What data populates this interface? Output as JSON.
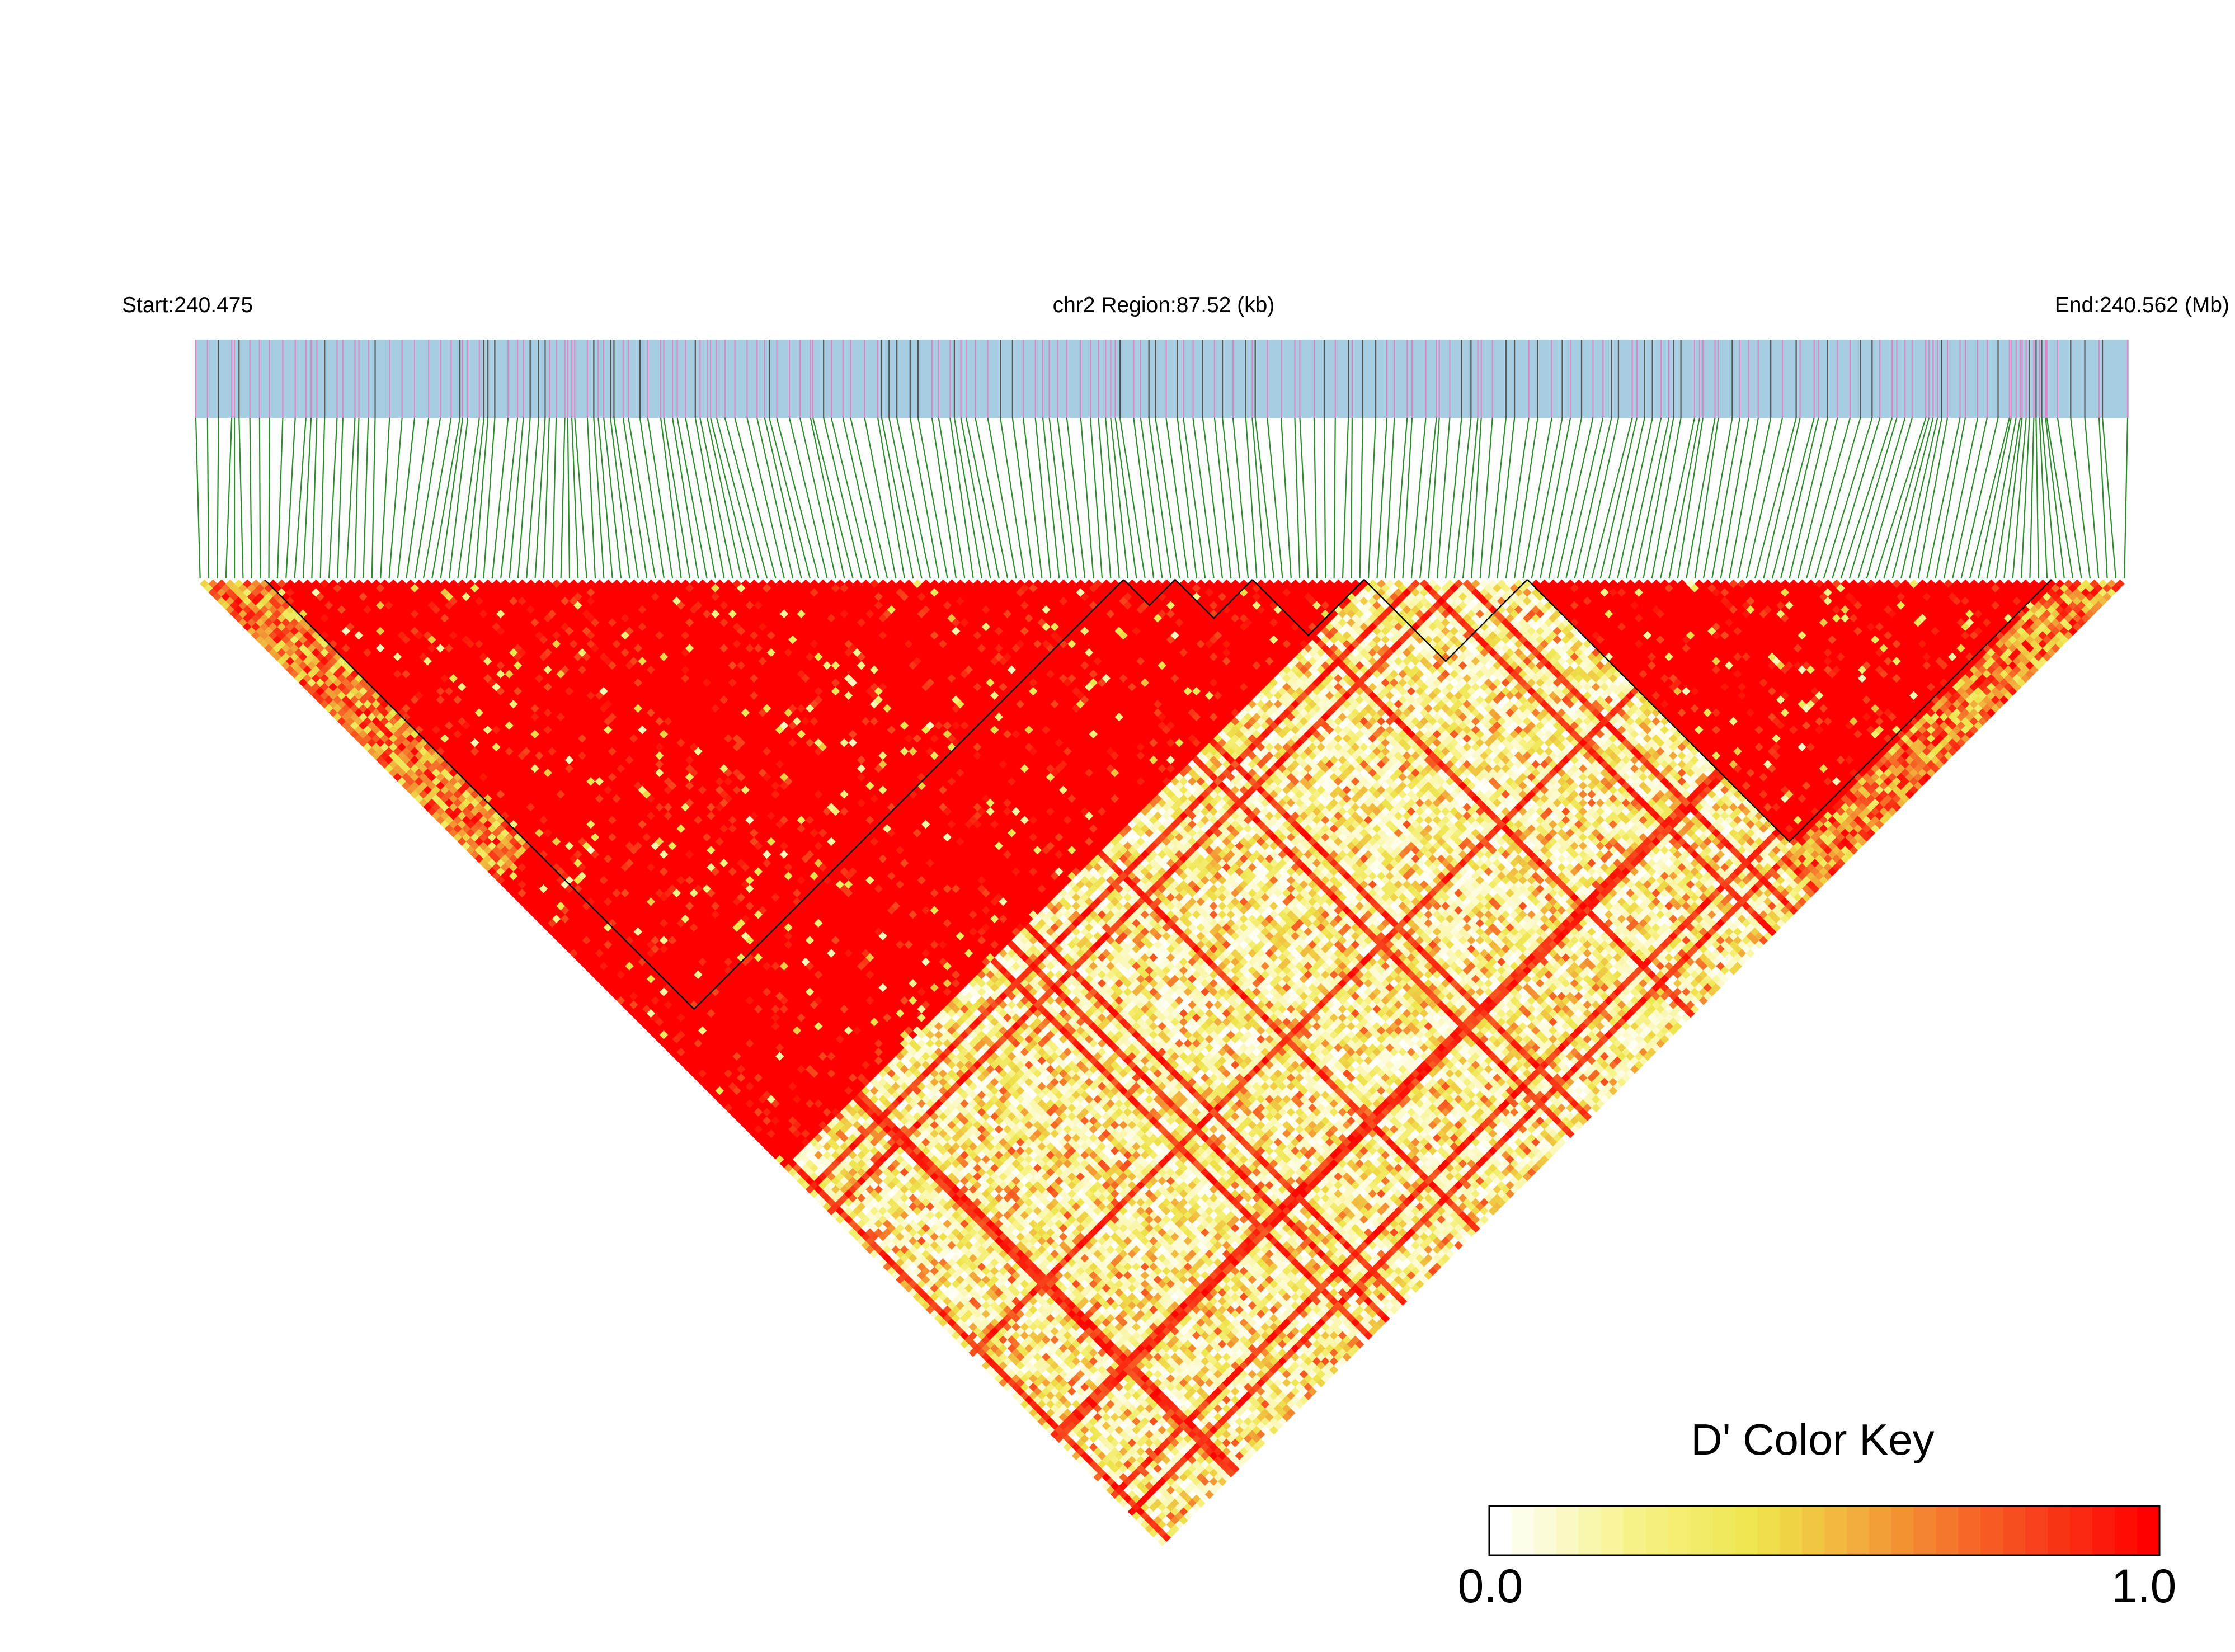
{
  "chart_data": {
    "type": "heatmap",
    "subtype": "linkage-disequilibrium triangle",
    "chromosome": "chr2",
    "header": {
      "start_label": "Start:240.475",
      "region_label": "chr2 Region:87.52 (kb)",
      "end_label": "End:240.562 (Mb)"
    },
    "region": {
      "start_mb": 240.475,
      "end_mb": 240.562,
      "length_kb": 87.52
    },
    "n_snps": 225,
    "legend": {
      "title": "D' Color Key",
      "min_label": "0.0",
      "max_label": "1.0",
      "range": [
        0.0,
        1.0
      ],
      "gradient": [
        "#ffffff",
        "#f7f38a",
        "#eee44c",
        "#f39a35",
        "#f74b1e",
        "#ff0000"
      ]
    },
    "colors": {
      "track_fill": "#a6cde1",
      "tick_pink": "#dd88c4",
      "tick_dark": "#555555",
      "connector_green": "#2e8b2e",
      "high_ld": "#ff0000",
      "block_outline": "#000000"
    },
    "ld_blocks": [
      {
        "from_snp": 8,
        "to_snp": 108
      },
      {
        "from_snp": 108,
        "to_snp": 114
      },
      {
        "from_snp": 114,
        "to_snp": 123
      },
      {
        "from_snp": 123,
        "to_snp": 136
      },
      {
        "from_snp": 136,
        "to_snp": 155
      },
      {
        "from_snp": 155,
        "to_snp": 216
      }
    ],
    "d_prime_pattern": "High D' (near 1.0) within blocks spanning SNPs ~0-136 and ~155-222; low-to-moderate D' (0.0-0.5) between the two groups with scattered high-D' cross lines."
  }
}
